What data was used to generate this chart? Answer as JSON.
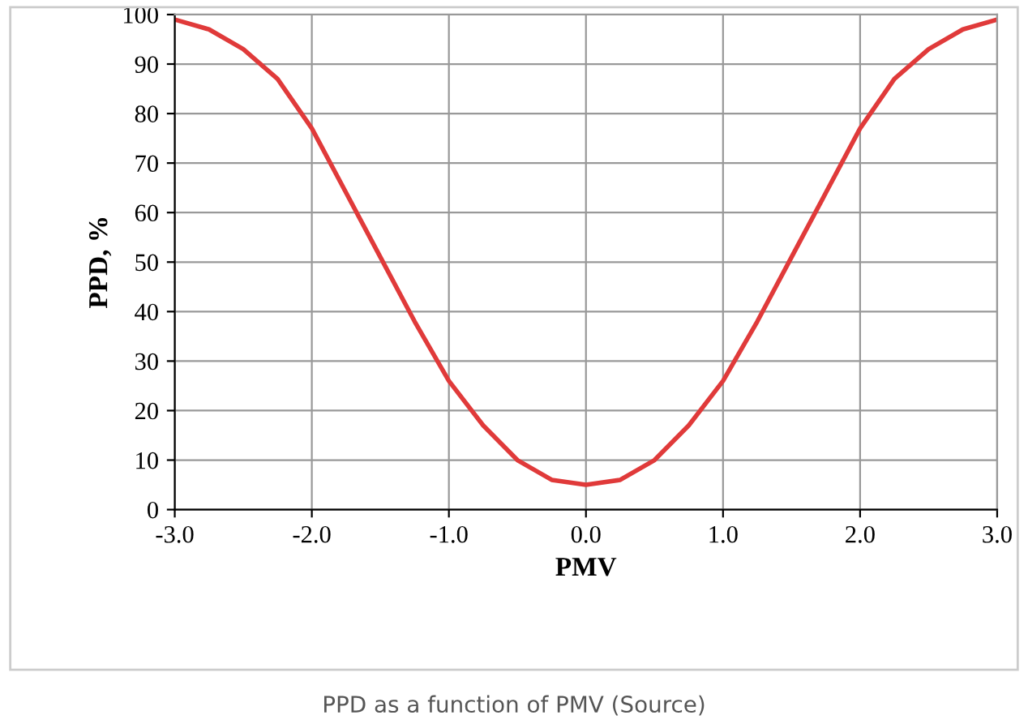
{
  "chart_data": {
    "type": "line",
    "xlabel": "PMV",
    "ylabel": "PPD, %",
    "annotations": [
      "PPD as a function of PMV (Source)"
    ],
    "x": [
      -3.0,
      -2.75,
      -2.5,
      -2.25,
      -2.0,
      -1.75,
      -1.5,
      -1.25,
      -1.0,
      -0.75,
      -0.5,
      -0.25,
      0.0,
      0.25,
      0.5,
      0.75,
      1.0,
      1.25,
      1.5,
      1.75,
      2.0,
      2.25,
      2.5,
      2.75,
      3.0
    ],
    "series": [
      {
        "color": "#e03a3a",
        "values": [
          99,
          97,
          93,
          87,
          77,
          64,
          51,
          38,
          26,
          17,
          10,
          6,
          5,
          6,
          10,
          17,
          26,
          38,
          51,
          64,
          77,
          87,
          93,
          97,
          99
        ]
      }
    ],
    "xlim": [
      -3.0,
      3.0
    ],
    "ylim": [
      0,
      100
    ],
    "xticks": [
      {
        "value": -3.0,
        "label": "-3.0"
      },
      {
        "value": -2.0,
        "label": "-2.0"
      },
      {
        "value": -1.0,
        "label": "-1.0"
      },
      {
        "value": 0.0,
        "label": "0.0"
      },
      {
        "value": 1.0,
        "label": "1.0"
      },
      {
        "value": 2.0,
        "label": "2.0"
      },
      {
        "value": 3.0,
        "label": "3.0"
      }
    ],
    "yticks": [
      0,
      10,
      20,
      30,
      40,
      50,
      60,
      70,
      80,
      90,
      100
    ],
    "grid": true,
    "legend": false,
    "marker": "none",
    "line_style": "solid"
  }
}
